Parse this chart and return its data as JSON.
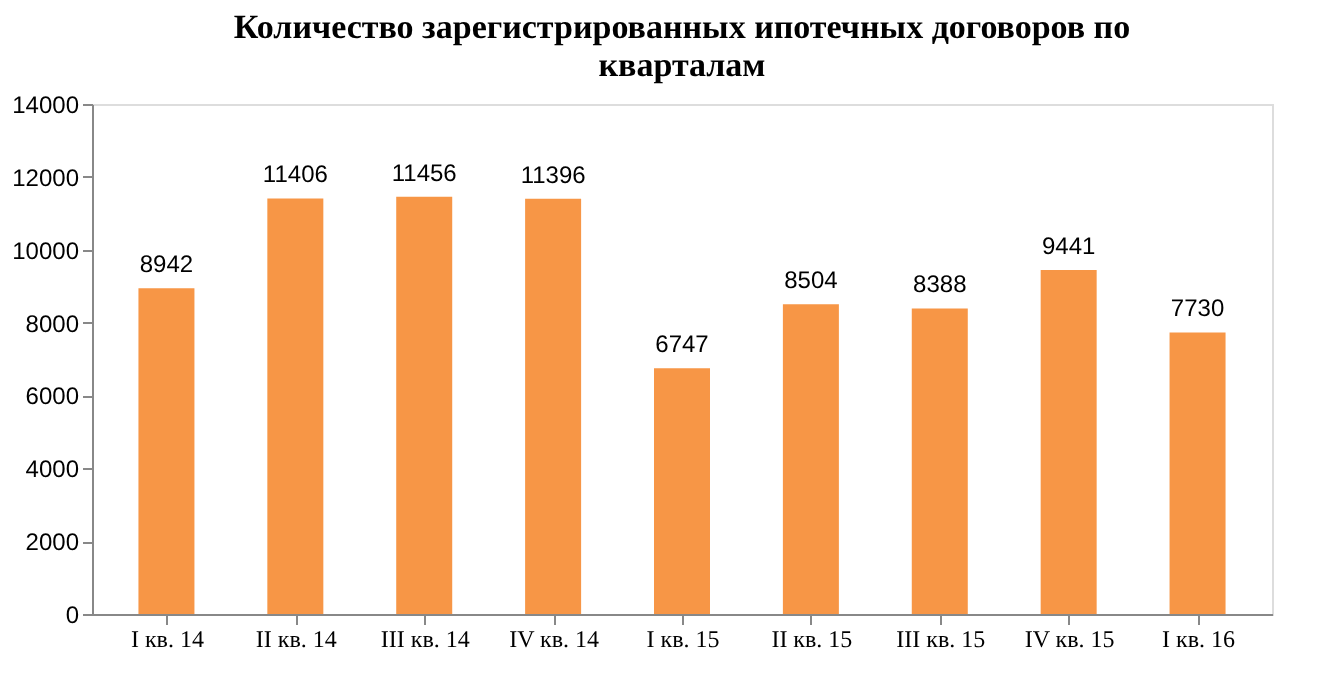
{
  "chart_data": {
    "type": "bar",
    "title": "Количество зарегистрированных ипотечных договоров по кварталам",
    "categories": [
      "I кв. 14",
      "II кв. 14",
      "III кв. 14",
      "IV кв. 14",
      "I кв. 15",
      "II кв. 15",
      "III кв. 15",
      "IV кв. 15",
      "I кв. 16"
    ],
    "values": [
      8942,
      11406,
      11456,
      11396,
      6747,
      8504,
      8388,
      9441,
      7730
    ],
    "color": "#f79646",
    "ylim": [
      0,
      14000
    ],
    "yticks": [
      0,
      2000,
      4000,
      6000,
      8000,
      10000,
      12000,
      14000
    ],
    "grid": false,
    "data_labels": true
  }
}
